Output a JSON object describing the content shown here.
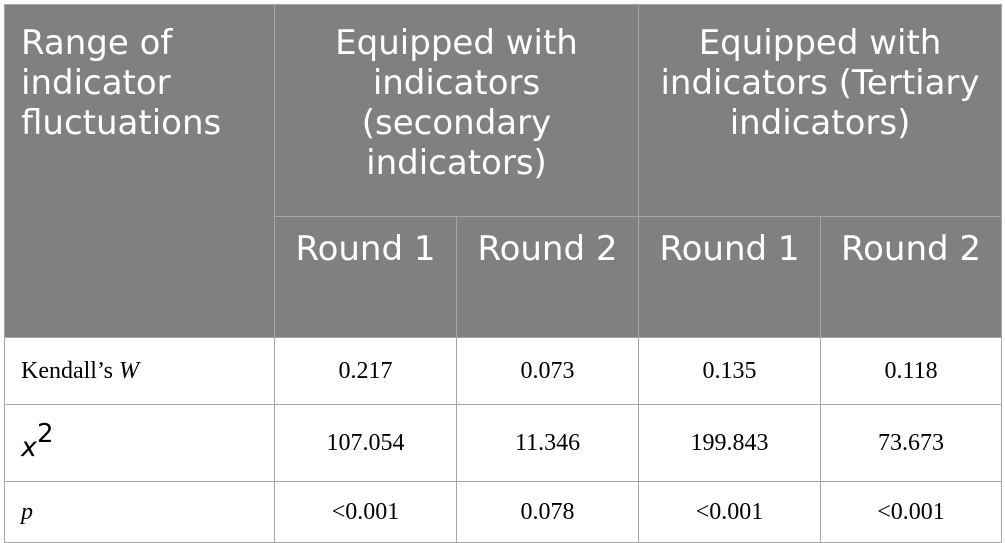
{
  "table": {
    "header": {
      "corner": "Range of indicator fluctuations",
      "groups": [
        "Equipped with indicators (secondary indicators)",
        "Equipped with indicators (Tertiary indicators)"
      ],
      "rounds": [
        "Round 1",
        "Round 2",
        "Round 1",
        "Round 2"
      ]
    },
    "rows": [
      {
        "label_prefix": "Kendall’s ",
        "label_italic": "W",
        "values": [
          "0.217",
          "0.073",
          "0.135",
          "0.118"
        ]
      },
      {
        "label_base": "x",
        "label_sup": "2",
        "values": [
          "107.054",
          "11.346",
          "199.843",
          "73.673"
        ]
      },
      {
        "label_italic": "p",
        "values": [
          "<0.001",
          "0.078",
          "<0.001",
          "<0.001"
        ]
      }
    ]
  }
}
